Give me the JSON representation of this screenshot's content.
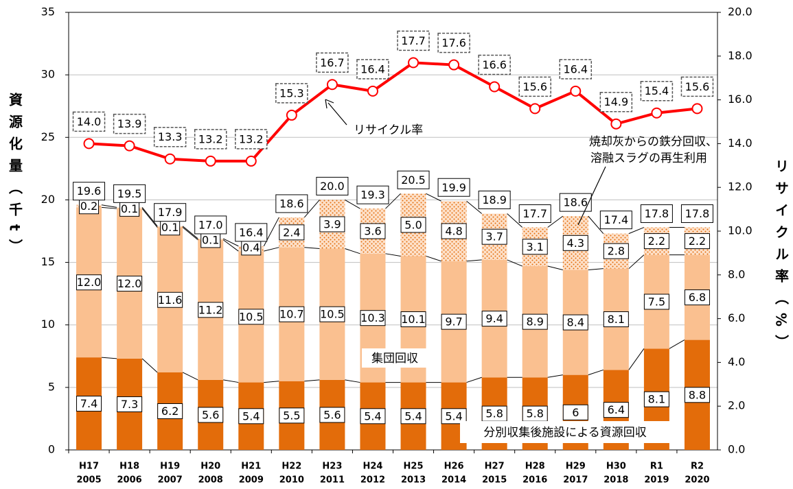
{
  "chart_data": {
    "type": "bar",
    "y_label": "資源化量（千t）",
    "y2_label": "リサイクル率（%）",
    "categories": [
      [
        "H17",
        "2005"
      ],
      [
        "H18",
        "2006"
      ],
      [
        "H19",
        "2007"
      ],
      [
        "H20",
        "2008"
      ],
      [
        "H21",
        "2009"
      ],
      [
        "H22",
        "2010"
      ],
      [
        "H23",
        "2011"
      ],
      [
        "H24",
        "2012"
      ],
      [
        "H25",
        "2013"
      ],
      [
        "H26",
        "2014"
      ],
      [
        "H27",
        "2015"
      ],
      [
        "H28",
        "2016"
      ],
      [
        "H29",
        "2017"
      ],
      [
        "H30",
        "2018"
      ],
      [
        "R1",
        "2019"
      ],
      [
        "R2",
        "2020"
      ]
    ],
    "series": [
      {
        "name": "分別収集後施設による資源回収",
        "color": "#e36c0a",
        "values": [
          7.4,
          7.3,
          6.2,
          5.6,
          5.4,
          5.5,
          5.6,
          5.4,
          5.4,
          5.4,
          5.8,
          5.8,
          6.0,
          6.4,
          8.1,
          8.8
        ]
      },
      {
        "name": "集団回収",
        "color": "#fac090",
        "values": [
          12.0,
          12.0,
          11.6,
          11.2,
          10.5,
          10.7,
          10.5,
          10.3,
          10.1,
          9.7,
          9.4,
          8.9,
          8.4,
          8.1,
          7.5,
          6.8
        ],
        "value_labels": [
          "12.0",
          "12.0",
          "11.6",
          "11.2",
          "10.5",
          "10.7",
          "10.5",
          "10.3",
          "10.1",
          "9.7",
          "9.4",
          "8.9",
          "8.4",
          "8.1",
          "7.5",
          "6.8"
        ]
      },
      {
        "name": [
          "焼却灰からの鉄分回収、",
          "溶融スラグの再生利用"
        ],
        "color": "#fac090",
        "pattern": "dots",
        "values": [
          0.2,
          0.1,
          0.1,
          0.1,
          0.4,
          2.4,
          3.9,
          3.6,
          5.0,
          4.8,
          3.7,
          3.1,
          4.3,
          2.8,
          2.2,
          2.2
        ],
        "value_labels": [
          "0.2",
          "0.1",
          "0.1",
          "0.1",
          "0.4",
          "2.4",
          "3.9",
          "3.6",
          "5.0",
          "4.8",
          "3.7",
          "3.1",
          "4.3",
          "2.8",
          "2.2",
          "2.2"
        ]
      },
      {
        "name": "リサイクル率",
        "type": "line",
        "axis": "y2",
        "color": "#ff0000",
        "values": [
          14.0,
          13.9,
          13.3,
          13.2,
          13.2,
          15.3,
          16.7,
          16.4,
          17.7,
          17.6,
          16.6,
          15.6,
          16.4,
          14.9,
          15.4,
          15.6
        ],
        "value_labels": [
          "14.0",
          "13.9",
          "13.3",
          "13.2",
          "13.2",
          "15.3",
          "16.7",
          "16.4",
          "17.7",
          "17.6",
          "16.6",
          "15.6",
          "16.4",
          "14.9",
          "15.4",
          "15.6"
        ]
      }
    ],
    "totals": {
      "values": [
        19.6,
        19.5,
        17.9,
        17.0,
        16.4,
        18.6,
        20.0,
        19.3,
        20.5,
        19.9,
        18.9,
        17.7,
        18.6,
        17.4,
        17.8,
        17.8
      ],
      "value_labels": [
        "19.6",
        "19.5",
        "17.9",
        "17.0",
        "16.4",
        "18.6",
        "20.0",
        "19.3",
        "20.5",
        "19.9",
        "18.9",
        "17.7",
        "18.6",
        "17.4",
        "17.8",
        "17.8"
      ]
    },
    "ylim": [
      0,
      35
    ],
    "yticks": [
      0,
      5,
      10,
      15,
      20,
      25,
      30,
      35
    ],
    "y2lim": [
      0,
      20
    ],
    "y2ticks": [
      {
        "value": 0,
        "label": "0.0"
      },
      {
        "value": 2,
        "label": "2.0"
      },
      {
        "value": 4,
        "label": "4.0"
      },
      {
        "value": 6,
        "label": "6.0"
      },
      {
        "value": 8,
        "label": "8.0"
      },
      {
        "value": 10,
        "label": "10.0"
      },
      {
        "value": 12,
        "label": "12.0"
      },
      {
        "value": 14,
        "label": "14.0"
      },
      {
        "value": 16,
        "label": "16.0"
      },
      {
        "value": 18,
        "label": "18.0"
      },
      {
        "value": 20,
        "label": "20.0"
      }
    ],
    "grid": true
  }
}
